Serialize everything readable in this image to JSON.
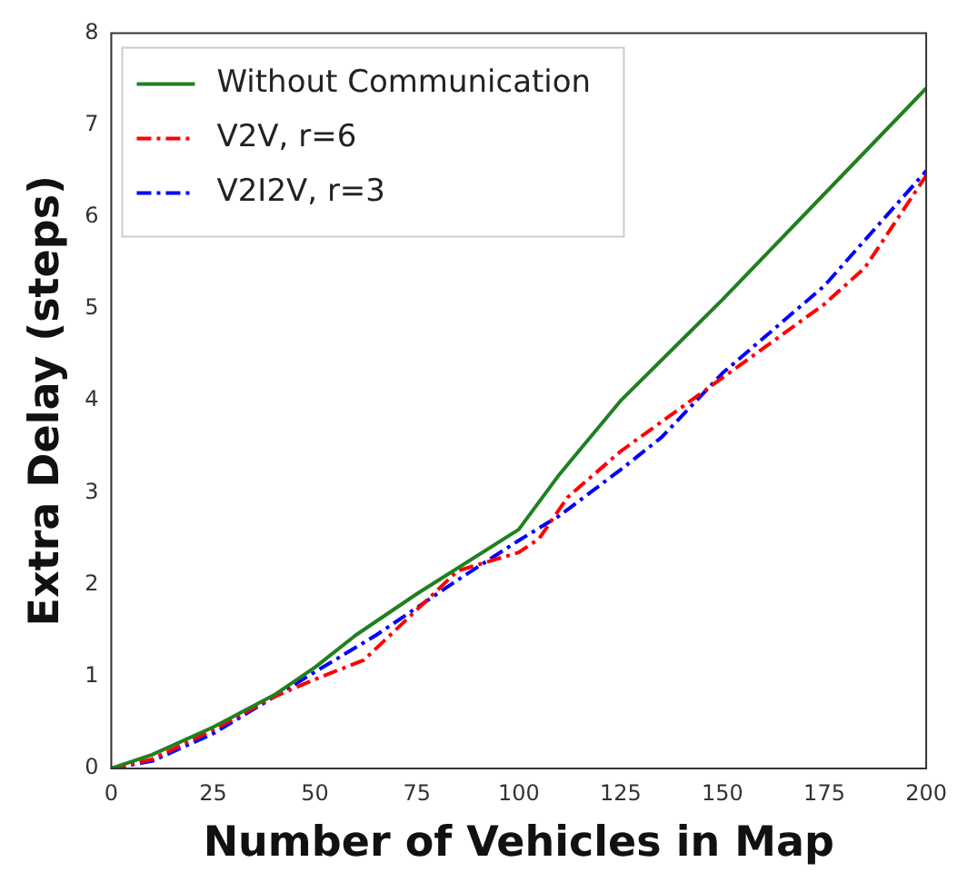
{
  "chart_data": {
    "type": "line",
    "xlabel": "Number of Vehicles in Map",
    "ylabel": "Extra Delay (steps)",
    "xlim": [
      0,
      200
    ],
    "xticks": [
      0,
      25,
      50,
      75,
      100,
      125,
      150,
      175,
      200
    ],
    "ylim": [
      0,
      8
    ],
    "yticks": [
      0,
      1,
      2,
      3,
      4,
      5,
      6,
      7,
      8
    ],
    "grid": false,
    "legend": "top left",
    "marker": "none",
    "series": [
      {
        "name": "Without Communication",
        "color": "#208020",
        "line_style": "solid",
        "x": [
          0,
          10,
          25,
          40,
          50,
          60,
          75,
          100,
          110,
          125,
          150,
          175,
          200
        ],
        "values": [
          0,
          0.15,
          0.45,
          0.8,
          1.1,
          1.45,
          1.9,
          2.6,
          3.2,
          4.0,
          5.1,
          6.25,
          7.4
        ]
      },
      {
        "name": "V2V, r=6",
        "color": "#ff0000",
        "line_style": "dashed",
        "x": [
          0,
          10,
          25,
          40,
          50,
          62,
          72,
          85,
          100,
          105,
          112,
          125,
          150,
          175,
          185,
          200
        ],
        "values": [
          0,
          0.1,
          0.42,
          0.78,
          0.97,
          1.18,
          1.6,
          2.15,
          2.35,
          2.5,
          2.95,
          3.45,
          4.25,
          5.05,
          5.45,
          6.45
        ]
      },
      {
        "name": "V2I2V, r=3",
        "color": "#0000ff",
        "line_style": "dashed",
        "x": [
          0,
          10,
          25,
          40,
          50,
          65,
          85,
          100,
          110,
          125,
          135,
          150,
          175,
          200
        ],
        "values": [
          0,
          0.08,
          0.38,
          0.78,
          1.05,
          1.45,
          2.05,
          2.48,
          2.75,
          3.25,
          3.6,
          4.3,
          5.25,
          6.5
        ]
      }
    ]
  }
}
